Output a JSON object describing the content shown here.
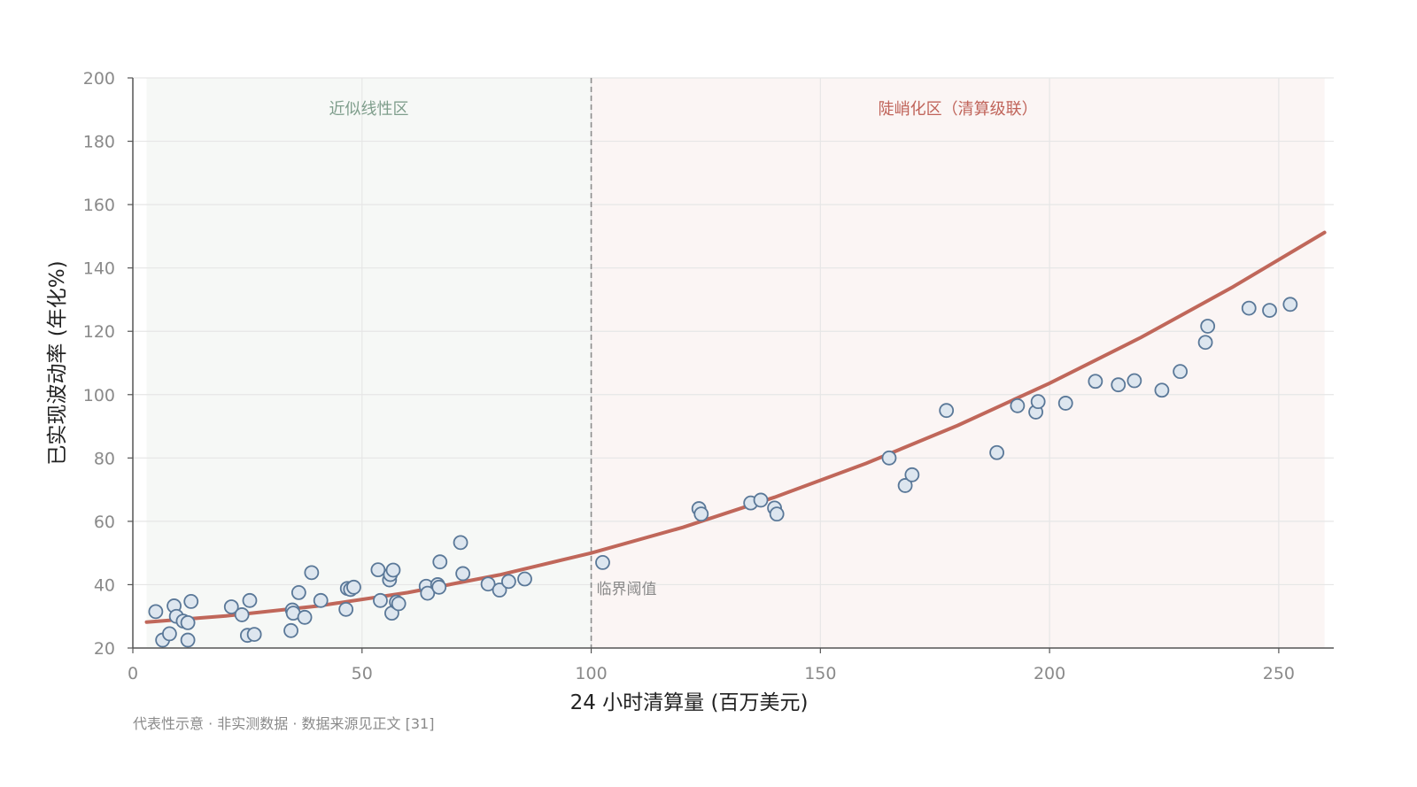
{
  "chart_data": {
    "type": "scatter",
    "xlabel": "24 小时清算量 (百万美元)",
    "ylabel": "已实现波动率 (年化%)",
    "xlim": [
      0,
      262
    ],
    "ylim": [
      20,
      200
    ],
    "xticks": [
      0,
      50,
      100,
      150,
      200,
      250
    ],
    "yticks": [
      20,
      40,
      60,
      80,
      100,
      120,
      140,
      160,
      180,
      200
    ],
    "grid": true,
    "threshold": {
      "x": 100,
      "label": "临界阈值"
    },
    "regions": [
      {
        "label": "近似线性区",
        "from": 3,
        "to": 100,
        "fill": "#eef3ef",
        "text_color": "#7f9e8c"
      },
      {
        "label": "陡峭化区（清算级联）",
        "from": 100,
        "to": 260,
        "fill": "#f7eceb",
        "text_color": "#c0645a"
      }
    ],
    "series": [
      {
        "kind": "scatter",
        "points": [
          [
            5,
            31.5
          ],
          [
            6.5,
            22.5
          ],
          [
            8,
            24.5
          ],
          [
            9,
            33.3
          ],
          [
            9.5,
            30
          ],
          [
            11,
            28.5
          ],
          [
            12,
            28
          ],
          [
            12,
            22.5
          ],
          [
            12.7,
            34.7
          ],
          [
            21.5,
            33
          ],
          [
            23.8,
            30.5
          ],
          [
            25,
            24
          ],
          [
            25.5,
            35
          ],
          [
            26.5,
            24.3
          ],
          [
            34.5,
            25.5
          ],
          [
            34.8,
            32
          ],
          [
            35,
            31
          ],
          [
            36.2,
            37.5
          ],
          [
            37.5,
            29.7
          ],
          [
            39,
            43.8
          ],
          [
            41,
            35
          ],
          [
            46.5,
            32.2
          ],
          [
            46.8,
            38.8
          ],
          [
            47.5,
            38.5
          ],
          [
            48.2,
            39.2
          ],
          [
            53.5,
            44.7
          ],
          [
            54,
            35
          ],
          [
            56,
            41.5
          ],
          [
            56.2,
            43.2
          ],
          [
            56.5,
            31
          ],
          [
            56.8,
            44.6
          ],
          [
            57.5,
            34.5
          ],
          [
            58,
            34
          ],
          [
            64,
            39.5
          ],
          [
            64.3,
            37.3
          ],
          [
            66.5,
            40
          ],
          [
            66.8,
            39.2
          ],
          [
            67,
            47.2
          ],
          [
            71.5,
            53.3
          ],
          [
            72,
            43.5
          ],
          [
            77.5,
            40.2
          ],
          [
            80,
            38.3
          ],
          [
            82,
            41
          ],
          [
            85.5,
            41.8
          ],
          [
            102.5,
            47
          ],
          [
            123.5,
            64
          ],
          [
            124,
            62.3
          ],
          [
            134.8,
            65.8
          ],
          [
            137,
            66.7
          ],
          [
            140,
            64.2
          ],
          [
            140.5,
            62.3
          ],
          [
            165,
            80
          ],
          [
            168.5,
            71.3
          ],
          [
            170,
            74.7
          ],
          [
            177.5,
            95
          ],
          [
            188.5,
            81.7
          ],
          [
            193,
            96.5
          ],
          [
            197,
            94.5
          ],
          [
            197.5,
            97.8
          ],
          [
            203.5,
            97.3
          ],
          [
            210,
            104.2
          ],
          [
            215,
            103.1
          ],
          [
            218.5,
            104.4
          ],
          [
            224.5,
            101.4
          ],
          [
            228.5,
            107.3
          ],
          [
            234,
            116.5
          ],
          [
            234.5,
            121.6
          ],
          [
            243.5,
            127.3
          ],
          [
            248,
            126.6
          ],
          [
            252.5,
            128.5
          ]
        ],
        "marker_fill": "#dde6ef",
        "marker_stroke": "#5a7898"
      },
      {
        "kind": "fit_line",
        "x": [
          3,
          20,
          40,
          60,
          80,
          100,
          120,
          140,
          160,
          180,
          200,
          220,
          240,
          260
        ],
        "values": [
          28.2,
          30.1,
          33.2,
          37.5,
          43.1,
          50,
          58.1,
          67.6,
          78.3,
          90.3,
          103.6,
          118.1,
          134.0,
          151.2
        ],
        "color": "#c0675a"
      }
    ]
  },
  "footnote": "代表性示意 · 非实测数据 · 数据来源见正文 [31]"
}
